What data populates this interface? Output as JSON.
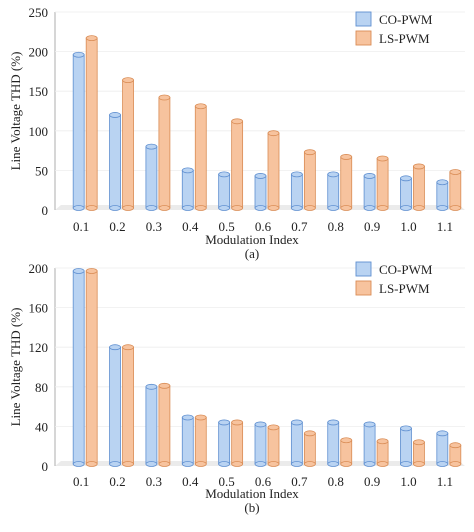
{
  "colors": {
    "co_pwm": "#b9d3f2",
    "co_pwm_edge": "#5f8fd0",
    "ls_pwm": "#f7c39e",
    "ls_pwm_edge": "#d98c55",
    "floor": "#e6e6e6",
    "grid": "#eeeeee"
  },
  "chart_data": [
    {
      "type": "bar",
      "panel_label": "(a)",
      "xlabel": "Modulation Index",
      "ylabel": "Line Voltage THD (%)",
      "ylim": [
        0,
        250
      ],
      "yticks": [
        0,
        50,
        100,
        150,
        200,
        250
      ],
      "categories": [
        "0.1",
        "0.2",
        "0.3",
        "0.4",
        "0.5",
        "0.6",
        "0.7",
        "0.8",
        "0.9",
        "1.0",
        "1.1"
      ],
      "legend_position": "top-right",
      "grid": true,
      "series": [
        {
          "name": "CO-PWM",
          "color_key": "co_pwm",
          "values": [
            196,
            120,
            80,
            50,
            45,
            43,
            45,
            45,
            43,
            40,
            35
          ]
        },
        {
          "name": "LS-PWM",
          "color_key": "ls_pwm",
          "values": [
            217,
            164,
            142,
            131,
            112,
            97,
            73,
            67,
            65,
            55,
            48
          ]
        }
      ]
    },
    {
      "type": "bar",
      "panel_label": "(b)",
      "xlabel": "Modulation Index",
      "ylabel": "Line Voltage THD (%)",
      "ylim": [
        0,
        200
      ],
      "yticks": [
        0,
        40,
        80,
        120,
        160,
        200
      ],
      "categories": [
        "0.1",
        "0.2",
        "0.3",
        "0.4",
        "0.5",
        "0.6",
        "0.7",
        "0.8",
        "0.9",
        "1.0",
        "1.1"
      ],
      "legend_position": "top-right",
      "grid": true,
      "series": [
        {
          "name": "CO-PWM",
          "color_key": "co_pwm",
          "values": [
            197,
            120,
            80,
            49,
            44,
            42,
            44,
            44,
            42,
            38,
            33
          ]
        },
        {
          "name": "LS-PWM",
          "color_key": "ls_pwm",
          "values": [
            197,
            120,
            81,
            49,
            44,
            39,
            33,
            26,
            25,
            24,
            21
          ]
        }
      ]
    }
  ]
}
